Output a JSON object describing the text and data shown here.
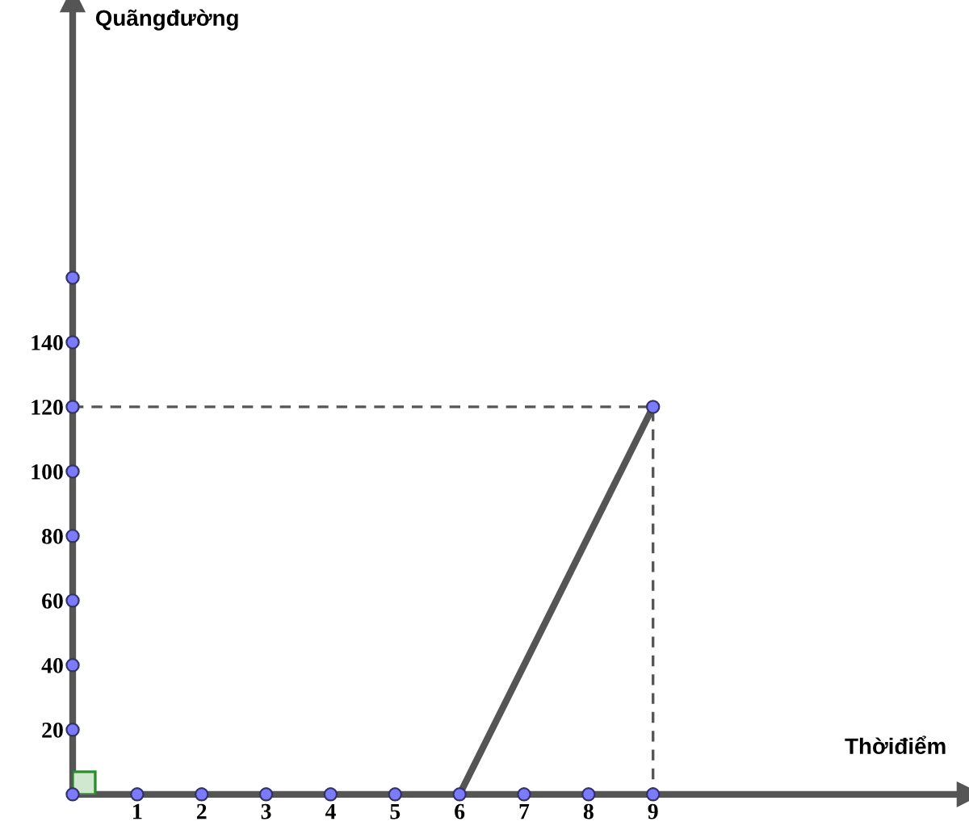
{
  "chart_data": {
    "type": "line",
    "xlabel": "Thờiđiểm",
    "ylabel": "Quãngđường",
    "xlim": [
      0,
      13.9
    ],
    "ylim": [
      0,
      246
    ],
    "xticks": [
      1,
      2,
      3,
      4,
      5,
      6,
      7,
      8,
      9
    ],
    "yticks": [
      20,
      40,
      60,
      80,
      100,
      120,
      140
    ],
    "grid": false,
    "series": [
      {
        "x": [
          0,
          9,
          9
        ],
        "values": [
          120,
          120,
          0
        ],
        "color": "#555555",
        "line_style": "dashed"
      },
      {
        "x": [
          6,
          9
        ],
        "values": [
          0,
          120
        ],
        "color": "#555555",
        "line_style": "solid"
      },
      {
        "type": "scatter",
        "x": [
          0,
          1,
          2,
          3,
          4,
          5,
          6,
          7,
          8,
          9,
          0,
          0,
          0,
          0,
          0,
          0,
          0,
          0,
          9
        ],
        "values": [
          0,
          0,
          0,
          0,
          0,
          0,
          0,
          0,
          0,
          0,
          20,
          40,
          60,
          80,
          100,
          120,
          140,
          160,
          120
        ],
        "color": "#7b7bff",
        "marker": "circle"
      }
    ]
  }
}
